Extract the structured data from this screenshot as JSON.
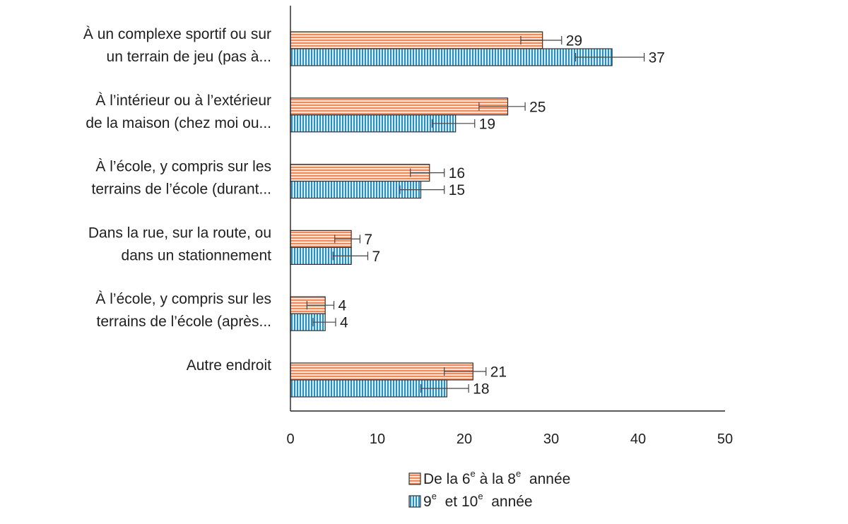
{
  "chart_data": {
    "type": "bar",
    "orientation": "horizontal",
    "categories": [
      [
        "À un complexe sportif ou sur",
        "un terrain de jeu (pas à..."
      ],
      [
        "À l’intérieur ou à l’extérieur",
        "de la maison (chez moi ou..."
      ],
      [
        "À l’école, y compris sur les",
        "terrains de l’école (durant..."
      ],
      [
        "Dans la rue, sur la route, ou",
        "dans un stationnement"
      ],
      [
        "À l’école, y compris sur les",
        "terrains de l’école (après..."
      ],
      [
        "Autre endroit"
      ]
    ],
    "series": [
      {
        "name": "De la 6e à la 8e année",
        "legend_parts": [
          "De la 6",
          "e",
          " à la 8",
          "e",
          "  année"
        ],
        "color": "#f4a582",
        "stroke": "#333333",
        "pattern": "horizontal-stripes",
        "values": [
          29,
          25,
          16,
          7,
          4,
          21
        ],
        "error_low": [
          26.5,
          21.7,
          13.8,
          5.1,
          1.9,
          17.7
        ],
        "error_high": [
          31.2,
          27.0,
          17.7,
          8.0,
          5.0,
          22.5
        ]
      },
      {
        "name": "9e et 10e année",
        "legend_parts": [
          "9",
          "e",
          "  et 10",
          "e",
          "  année"
        ],
        "color": "#7ec8e3",
        "stroke": "#333333",
        "pattern": "vertical-stripes",
        "values": [
          37,
          19,
          15,
          7,
          4,
          18
        ],
        "error_low": [
          32.8,
          16.3,
          12.6,
          4.9,
          2.6,
          15.0
        ],
        "error_high": [
          40.7,
          21.2,
          17.7,
          8.9,
          5.2,
          20.5
        ]
      }
    ],
    "xlim": [
      0,
      50
    ],
    "xticks": [
      0,
      10,
      20,
      30,
      40,
      50
    ],
    "grid": false,
    "legend_position": "bottom"
  }
}
